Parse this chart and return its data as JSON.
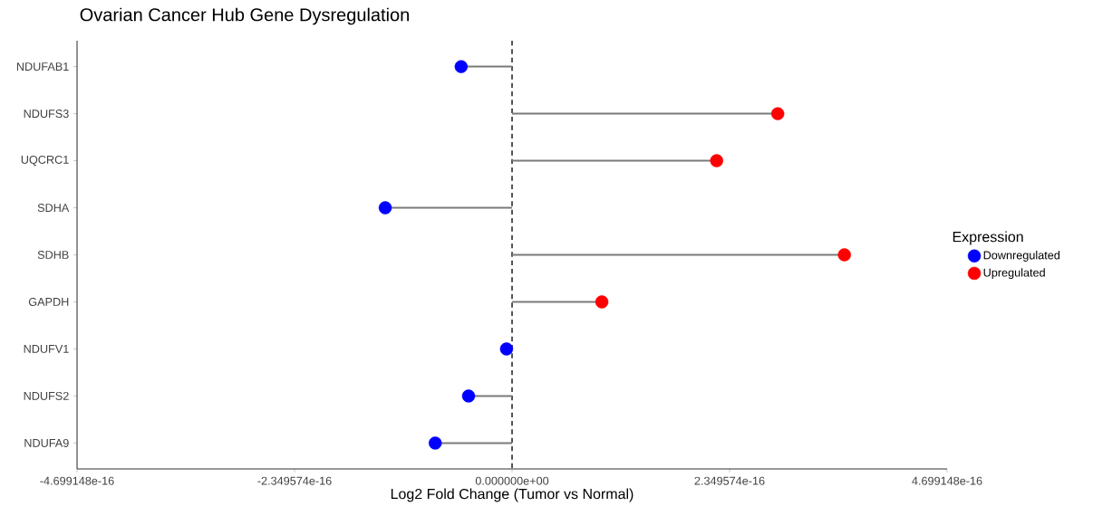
{
  "chart_data": {
    "type": "lollipop",
    "orientation": "horizontal",
    "title": "Ovarian Cancer Hub Gene Dysregulation",
    "xlabel": "Log2 Fold Change (Tumor vs Normal)",
    "legend_title": "Expression",
    "legend": "right",
    "marker": "circle",
    "categories": [
      "NDUFAB1",
      "NDUFS3",
      "UQCRC1",
      "SDHA",
      "SDHB",
      "GAPDH",
      "NDUFV1",
      "NDUFS2",
      "NDUFA9"
    ],
    "series": [
      {
        "name": "Downregulated",
        "color": "#0000ff",
        "values": [
          -5.5e-17,
          null,
          null,
          -1.37e-16,
          null,
          null,
          -6e-18,
          -4.7e-17,
          -8.3e-17
        ]
      },
      {
        "name": "Upregulated",
        "color": "#ff0000",
        "values": [
          null,
          2.87e-16,
          2.21e-16,
          null,
          3.59e-16,
          9.7e-17,
          null,
          null,
          null
        ]
      }
    ],
    "xlim": [
      -4.699148e-16,
      4.699148e-16
    ],
    "xticks": [
      {
        "value": -4.699148e-16,
        "label": "-4.699148e-16"
      },
      {
        "value": -2.349574e-16,
        "label": "-2.349574e-16"
      },
      {
        "value": 0,
        "label": "0.000000e+00"
      },
      {
        "value": 2.349574e-16,
        "label": "2.349574e-16"
      },
      {
        "value": 4.699148e-16,
        "label": "4.699148e-16"
      }
    ],
    "ref_lines": [
      {
        "axis": "x",
        "value": 0,
        "line_style": "dashed",
        "color": "#000000"
      }
    ]
  }
}
